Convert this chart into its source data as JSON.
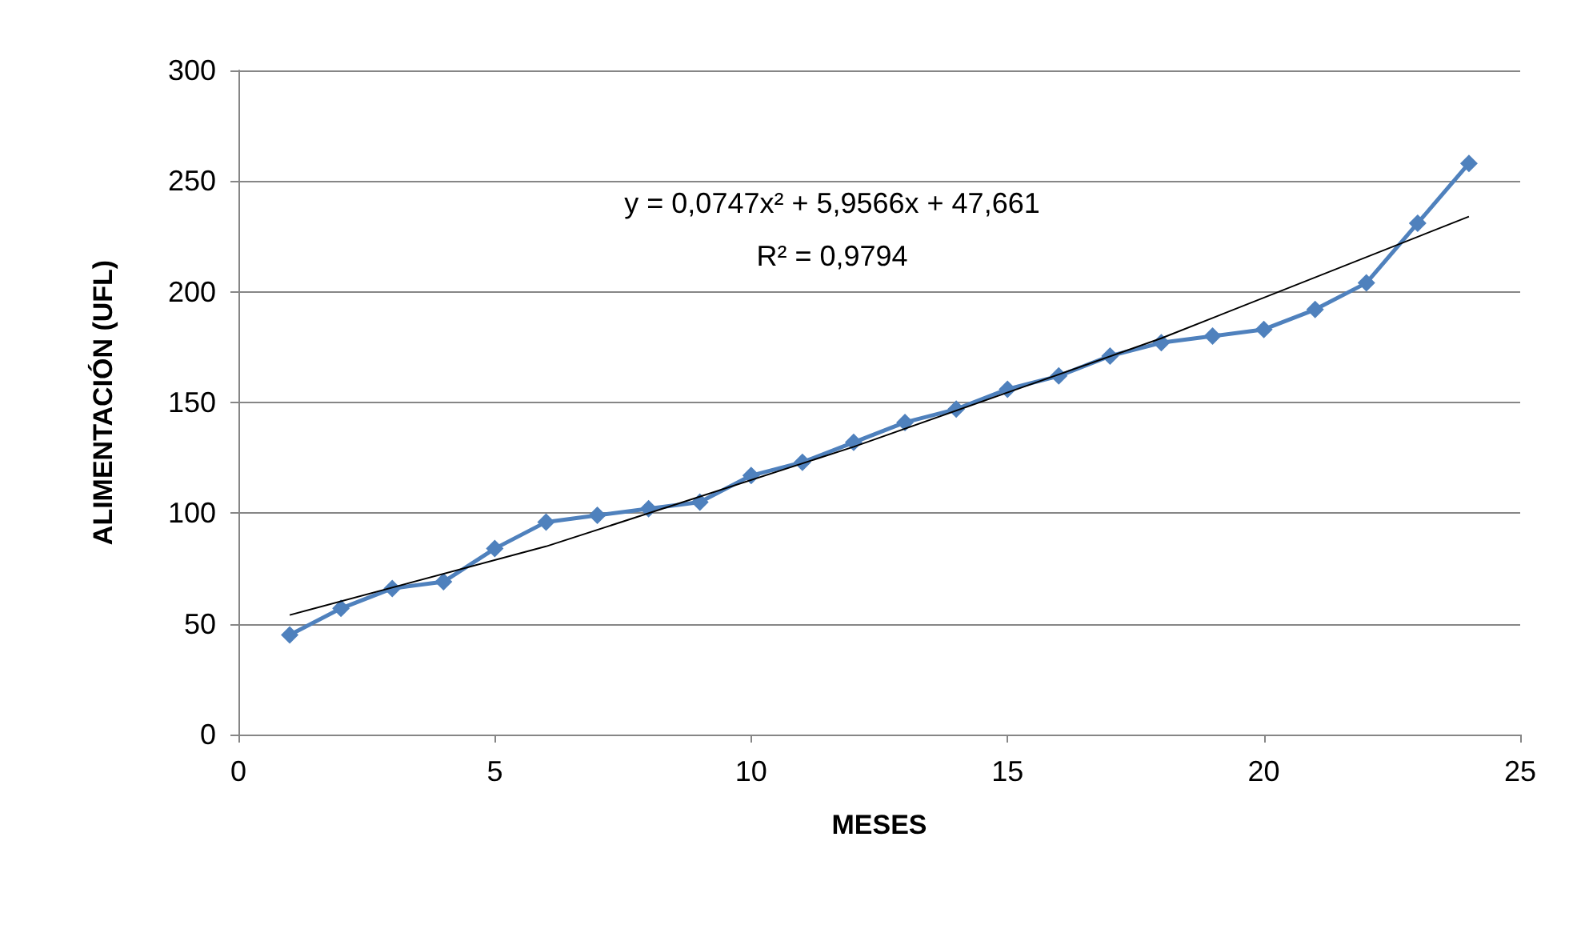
{
  "chart_data": {
    "type": "line",
    "xlabel": "MESES",
    "ylabel": "ALIMENTACIÓN (UFL)",
    "x": [
      1,
      2,
      3,
      4,
      5,
      6,
      7,
      8,
      9,
      10,
      11,
      12,
      13,
      14,
      15,
      16,
      17,
      18,
      19,
      20,
      21,
      22,
      23,
      24
    ],
    "series": [
      {
        "color": "#4f81bd",
        "marker": "diamond",
        "values": [
          45,
          57,
          66,
          69,
          84,
          96,
          99,
          102,
          105,
          117,
          123,
          132,
          141,
          147,
          156,
          162,
          171,
          177,
          180,
          183,
          192,
          204,
          231,
          258
        ]
      },
      {
        "type": "line",
        "color": "#000000",
        "marker": "none",
        "x": [
          1,
          6,
          12,
          18,
          24
        ],
        "values": [
          54,
          85,
          130,
          179,
          234
        ]
      }
    ],
    "xlim": [
      0,
      25
    ],
    "xticks": [
      0,
      5,
      10,
      15,
      20,
      25
    ],
    "ylim": [
      0,
      300
    ],
    "yticks": [
      0,
      50,
      100,
      150,
      200,
      250,
      300
    ],
    "grid": "y",
    "annotations": [
      "y = 0,0747x² + 5,9566x + 47,661",
      "R² = 0,9794"
    ]
  }
}
